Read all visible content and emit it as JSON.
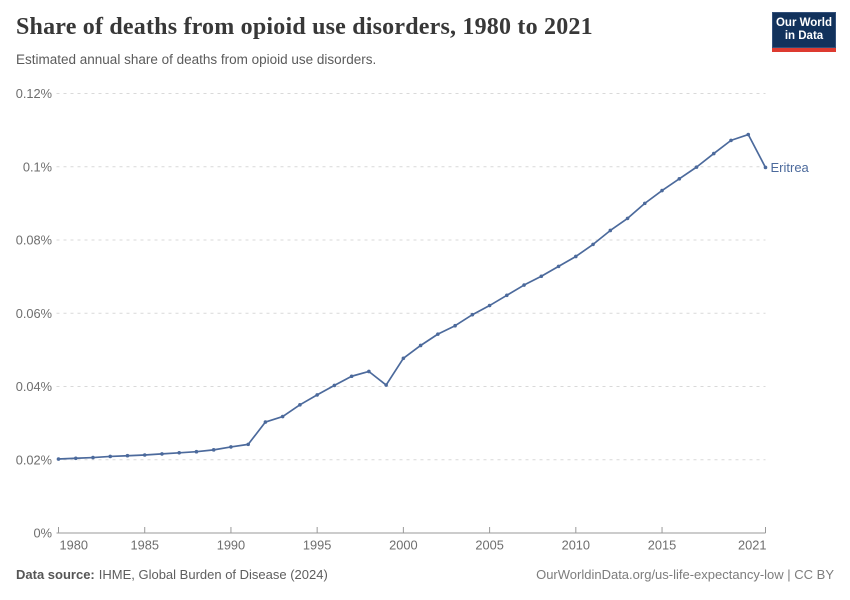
{
  "header": {
    "title": "Share of deaths from opioid use disorders, 1980 to 2021",
    "subtitle": "Estimated annual share of deaths from opioid use disorders.",
    "logo": {
      "line1": "Our World",
      "line2": "in Data"
    }
  },
  "footer": {
    "source_label": "Data source:",
    "source_value": "IHME, Global Burden of Disease (2024)",
    "credit": "OurWorldinData.org/us-life-expectancy-low | CC BY"
  },
  "colors": {
    "line": "#4C6A9C",
    "gridline": "#d9d9d9",
    "axis": "#999999",
    "tick_label": "#6e6e6e",
    "title": "#383838",
    "subtitle": "#5b5b5b",
    "logo_background": "#12325c",
    "logo_stripe": "#dd3a30"
  },
  "chart_data": {
    "type": "line",
    "title": "Share of deaths from opioid use disorders, 1980 to 2021",
    "subtitle": "Estimated annual share of deaths from opioid use disorders.",
    "unit": "%",
    "xlabel": "",
    "ylabel": "",
    "xlim": [
      1980,
      2021
    ],
    "ylim": [
      0,
      0.12
    ],
    "grid": "horizontal-dashed",
    "legend_position": "end-of-line-label",
    "x_ticks": [
      {
        "value": 1980,
        "label": "1980"
      },
      {
        "value": 1985,
        "label": "1985"
      },
      {
        "value": 1990,
        "label": "1990"
      },
      {
        "value": 1995,
        "label": "1995"
      },
      {
        "value": 2000,
        "label": "2000"
      },
      {
        "value": 2005,
        "label": "2005"
      },
      {
        "value": 2010,
        "label": "2010"
      },
      {
        "value": 2015,
        "label": "2015"
      },
      {
        "value": 2021,
        "label": "2021"
      }
    ],
    "y_ticks": [
      {
        "value": 0,
        "label": "0%"
      },
      {
        "value": 0.02,
        "label": "0.02%"
      },
      {
        "value": 0.04,
        "label": "0.04%"
      },
      {
        "value": 0.06,
        "label": "0.06%"
      },
      {
        "value": 0.08,
        "label": "0.08%"
      },
      {
        "value": 0.1,
        "label": "0.1%"
      },
      {
        "value": 0.12,
        "label": "0.12%"
      }
    ],
    "series": [
      {
        "name": "Eritrea",
        "color": "#4C6A9C",
        "x": [
          1980,
          1981,
          1982,
          1983,
          1984,
          1985,
          1986,
          1987,
          1988,
          1989,
          1990,
          1991,
          1992,
          1993,
          1994,
          1995,
          1996,
          1997,
          1998,
          1999,
          2000,
          2001,
          2002,
          2003,
          2004,
          2005,
          2006,
          2007,
          2008,
          2009,
          2010,
          2011,
          2012,
          2013,
          2014,
          2015,
          2016,
          2017,
          2018,
          2019,
          2020,
          2021
        ],
        "values": [
          0.0202,
          0.0204,
          0.0206,
          0.0209,
          0.0211,
          0.0213,
          0.0216,
          0.0219,
          0.0222,
          0.0227,
          0.0235,
          0.0242,
          0.0303,
          0.0318,
          0.035,
          0.0377,
          0.0403,
          0.0428,
          0.0441,
          0.0404,
          0.0477,
          0.0512,
          0.0543,
          0.0566,
          0.0596,
          0.0621,
          0.0649,
          0.0677,
          0.0701,
          0.0728,
          0.0755,
          0.0788,
          0.0826,
          0.0859,
          0.09,
          0.0935,
          0.0967,
          0.0999,
          0.1036,
          0.1072,
          0.1088,
          0.0998
        ]
      }
    ]
  }
}
